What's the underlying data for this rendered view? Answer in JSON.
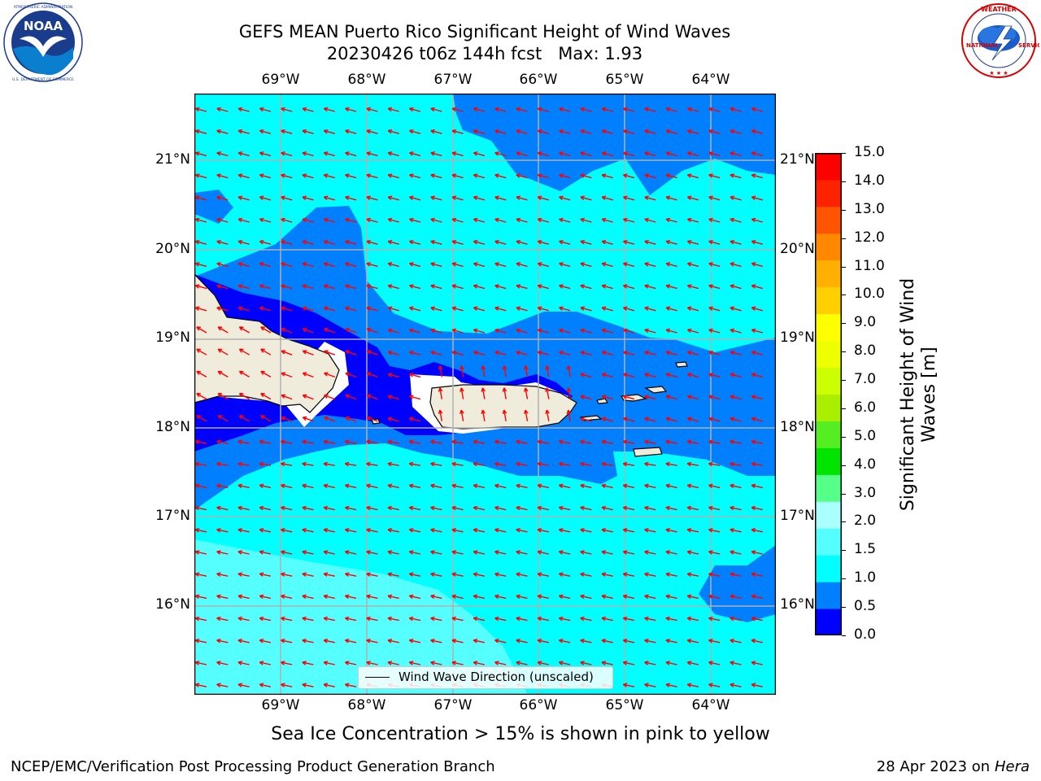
{
  "title": {
    "line1": "GEFS MEAN Puerto Rico Significant Height of Wind Waves",
    "line2": "20230426 t06z 144h fcst   Max: 1.93"
  },
  "logos": {
    "left": {
      "name": "NOAA",
      "ring_text": "NATIONAL OCEANIC AND ATMOSPHERIC ADMINISTRATION · U.S. DEPARTMENT OF COMMERCE"
    },
    "right": {
      "name": "NATIONAL WEATHER SERVICE"
    }
  },
  "map": {
    "lon_labels": [
      "69°W",
      "68°W",
      "67°W",
      "66°W",
      "65°W",
      "64°W"
    ],
    "lat_labels": [
      "21°N",
      "20°N",
      "19°N",
      "18°N",
      "17°N",
      "16°N"
    ],
    "legend_label": "Wind Wave Direction (unscaled)",
    "arrow_color": "#ff0000",
    "land_color": "#efecdc",
    "colors": {
      "band_0_0_5": "#0000ff",
      "band_0_5_1_0": "#0080ff",
      "band_1_0_1_5": "#00ffff",
      "band_1_5_2_0": "#55ffff"
    }
  },
  "colorbar": {
    "label": "Significant Height of Wind\nWaves [m]",
    "ticks": [
      "15.0",
      "14.0",
      "13.0",
      "12.0",
      "11.0",
      "10.0",
      "9.0",
      "8.0",
      "7.0",
      "6.0",
      "5.0",
      "4.0",
      "3.0",
      "2.0",
      "1.5",
      "1.0",
      "0.5",
      "0.0"
    ],
    "colors_bottom_to_top": [
      "#0000ff",
      "#0080ff",
      "#00ffff",
      "#55ffff",
      "#aaffff",
      "#55ff88",
      "#00e400",
      "#55ee22",
      "#aaee00",
      "#ccff00",
      "#eeff00",
      "#ffff00",
      "#ffd000",
      "#ffb000",
      "#ff8800",
      "#ff5500",
      "#ff2200",
      "#ff0000"
    ]
  },
  "caption": "Sea Ice Concentration > 15% is shown in pink to yellow",
  "footer": {
    "left": "NCEP/EMC/Verification Post Processing Product Generation Branch",
    "right_prefix": "28 Apr 2023 on ",
    "right_machine": "Hera"
  }
}
